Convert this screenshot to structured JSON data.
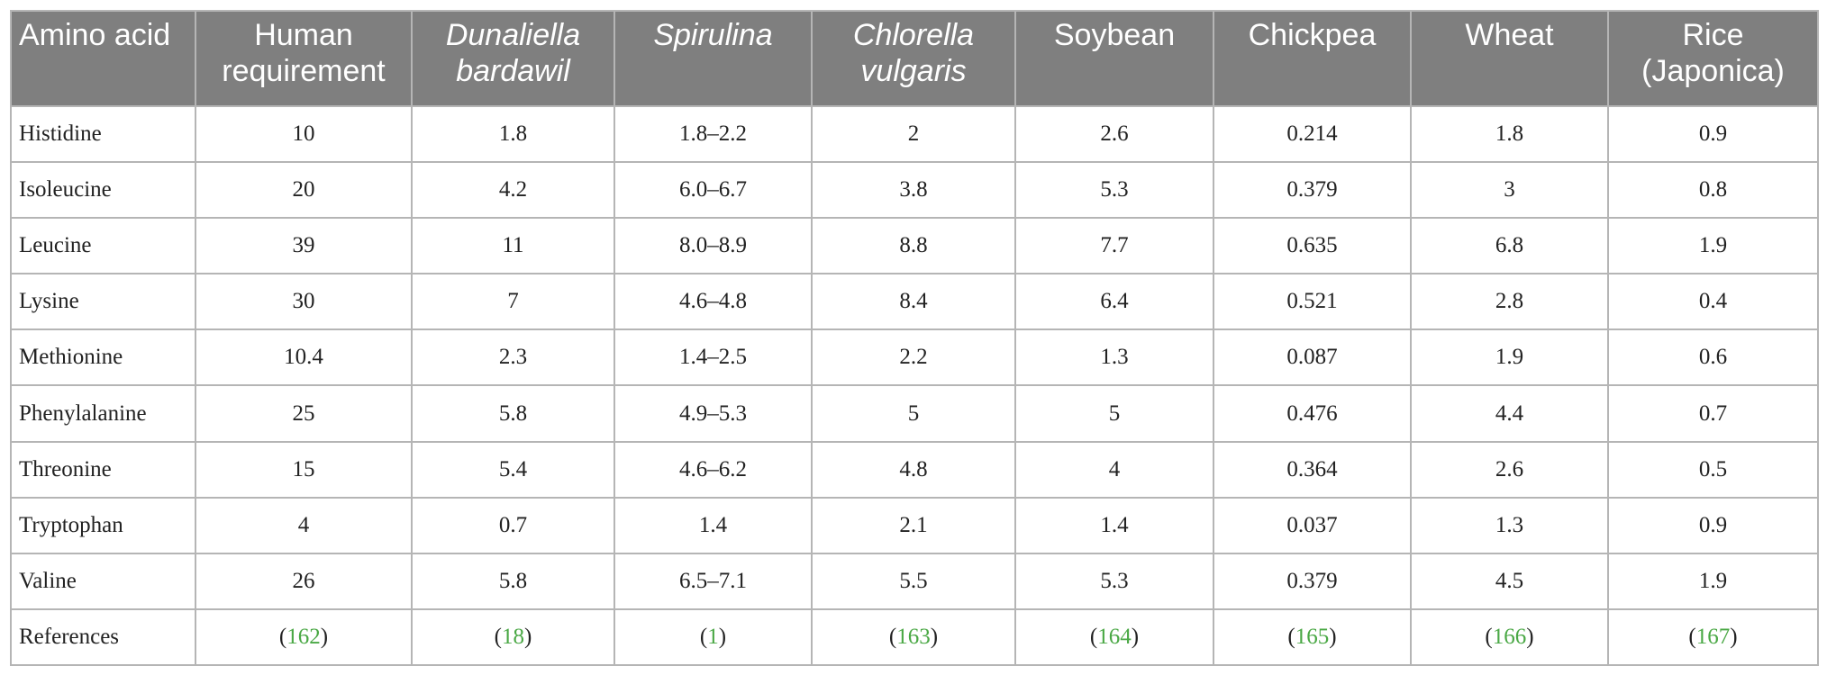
{
  "table": {
    "headers": [
      {
        "label": "Amino acid",
        "italic": false
      },
      {
        "label": "Human requirement",
        "italic": false
      },
      {
        "label": "Dunaliella bardawil",
        "italic": true
      },
      {
        "label": "Spirulina",
        "italic": true
      },
      {
        "label": "Chlorella vulgaris",
        "italic": true
      },
      {
        "label": "Soybean",
        "italic": false
      },
      {
        "label": "Chickpea",
        "italic": false
      },
      {
        "label": "Wheat",
        "italic": false
      },
      {
        "label": "Rice (Japonica)",
        "italic": false
      }
    ],
    "rows": [
      [
        "Histidine",
        "10",
        "1.8",
        "1.8–2.2",
        "2",
        "2.6",
        "0.214",
        "1.8",
        "0.9"
      ],
      [
        "Isoleucine",
        "20",
        "4.2",
        "6.0–6.7",
        "3.8",
        "5.3",
        "0.379",
        "3",
        "0.8"
      ],
      [
        "Leucine",
        "39",
        "11",
        "8.0–8.9",
        "8.8",
        "7.7",
        "0.635",
        "6.8",
        "1.9"
      ],
      [
        "Lysine",
        "30",
        "7",
        "4.6–4.8",
        "8.4",
        "6.4",
        "0.521",
        "2.8",
        "0.4"
      ],
      [
        "Methionine",
        "10.4",
        "2.3",
        "1.4–2.5",
        "2.2",
        "1.3",
        "0.087",
        "1.9",
        "0.6"
      ],
      [
        "Phenylalanine",
        "25",
        "5.8",
        "4.9–5.3",
        "5",
        "5",
        "0.476",
        "4.4",
        "0.7"
      ],
      [
        "Threonine",
        "15",
        "5.4",
        "4.6–6.2",
        "4.8",
        "4",
        "0.364",
        "2.6",
        "0.5"
      ],
      [
        "Tryptophan",
        "4",
        "0.7",
        "1.4",
        "2.1",
        "1.4",
        "0.037",
        "1.3",
        "0.9"
      ],
      [
        "Valine",
        "26",
        "5.8",
        "6.5–7.1",
        "5.5",
        "5.3",
        "0.379",
        "4.5",
        "1.9"
      ]
    ],
    "references": {
      "label": "References",
      "refs": [
        "162",
        "18",
        "1",
        "163",
        "164",
        "165",
        "166",
        "167"
      ]
    },
    "colors": {
      "header_bg": "#7f7f7f",
      "header_text": "#ffffff",
      "border": "#b5b5b5",
      "ref_link": "#4aa845"
    }
  }
}
